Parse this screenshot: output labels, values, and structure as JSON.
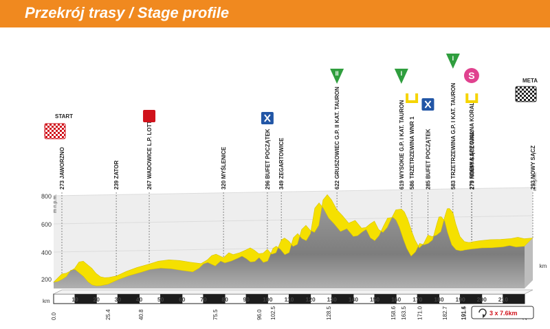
{
  "header": {
    "title": "Przekrój trasy / Stage profile"
  },
  "chart_data": {
    "type": "area",
    "title": "Przekrój trasy / Stage profile",
    "ylabel": "m n.p.m.",
    "x_unit": "km",
    "y_unit": "km",
    "xlim": [
      0,
      220
    ],
    "ylim": [
      200,
      800
    ],
    "y_ticks": [
      "200",
      "400",
      "600",
      "800"
    ],
    "x_ticks": [
      "10",
      "20",
      "30",
      "40",
      "50",
      "60",
      "70",
      "80",
      "90",
      "100",
      "110",
      "120",
      "130",
      "140",
      "150",
      "160",
      "170",
      "180",
      "190",
      "200",
      "210"
    ],
    "series": [
      {
        "x": [
          0,
          2,
          4,
          6,
          8,
          10,
          12,
          14,
          16,
          18,
          20,
          22,
          25.4,
          30,
          35,
          40.8,
          45,
          50,
          55,
          60,
          65,
          68,
          70,
          72,
          75.5,
          78,
          80,
          83,
          86,
          88,
          90,
          92,
          94,
          96,
          98,
          100,
          102.5,
          104,
          106,
          108,
          110,
          112,
          114,
          116,
          118,
          120,
          122,
          124,
          126,
          128.5,
          131,
          134,
          137,
          140,
          142,
          144,
          146,
          148,
          150,
          152,
          154,
          156,
          158.6,
          160,
          161.5,
          163.5,
          165,
          167,
          169,
          171,
          173,
          175,
          177,
          179,
          180,
          181,
          182.7,
          184,
          186,
          188,
          190,
          191.4,
          191.5,
          195,
          200,
          205,
          210,
          213,
          216,
          220
        ],
        "y": [
          245,
          250,
          265,
          285,
          330,
          335,
          310,
          285,
          248,
          225,
          218,
          220,
          230,
          262,
          290,
          315,
          335,
          345,
          340,
          328,
          318,
          345,
          375,
          385,
          360,
          395,
          382,
          395,
          415,
          430,
          412,
          388,
          392,
          420,
          385,
          395,
          485,
          500,
          478,
          440,
          455,
          560,
          590,
          555,
          540,
          590,
          770,
          808,
          770,
          700,
          660,
          605,
          625,
          570,
          575,
          600,
          620,
          560,
          540,
          575,
          640,
          700,
          705,
          685,
          635,
          545,
          485,
          430,
          460,
          520,
          510,
          520,
          545,
          658,
          708,
          710,
          680,
          600,
          510,
          475,
          468,
          470,
          472,
          480,
          488,
          490,
          496,
          505,
          495,
          500
        ]
      }
    ],
    "labels": [
      {
        "km": 0.0,
        "km_text": "0.0",
        "text": "273 JAWORZNO"
      },
      {
        "km": 25.4,
        "km_text": "25.4",
        "text": "239 ZATOR"
      },
      {
        "km": 40.8,
        "km_text": "40.8",
        "text": "267 WADOWICE L.P. LOTTO"
      },
      {
        "km": 75.5,
        "km_text": "75.5",
        "text": "320 MYŚLENICE"
      },
      {
        "km": 96.0,
        "km_text": "96.0",
        "text": "296 BUFET POCZĄTEK"
      },
      {
        "km": 102.5,
        "km_text": "102.5",
        "text": "349 ZEGARTOWICE"
      },
      {
        "km": 128.5,
        "km_text": "128.5",
        "text": "622 GRUSZOWIEC G.P. II KAT. TAURON"
      },
      {
        "km": 158.6,
        "km_text": "158.6",
        "text": "619 WYSOKIE G.P. I KAT. TAURON"
      },
      {
        "km": 163.5,
        "km_text": "163.5",
        "text": "586 TRZETRZEWINA WNR 1"
      },
      {
        "km": 171.0,
        "km_text": "171.0",
        "text": "285 BUFET POCZĄTEK"
      },
      {
        "km": 182.7,
        "km_text": "182.7",
        "text": "583 TRZETRZEWINA G.P. I KAT. TAURON"
      },
      {
        "km": 191.4,
        "km_text": "191.4",
        "text": "279 PREMIA SPECJALNA KORAL"
      },
      {
        "km": 191.5,
        "km_text": "191.5",
        "text": "279 NOWY SĄCZ WNR"
      },
      {
        "km": 220.0,
        "km_text": "220.0",
        "text": "293 NOWY SĄCZ"
      }
    ],
    "markers": {
      "start": "START",
      "finish": "META",
      "mountain_1": "I",
      "mountain_2": "II",
      "sprint_icon": "sprint-intermediate-icon",
      "feed_icon": "feed-zone-icon",
      "special_icon": "special-prize-icon",
      "lotto_icon": "lotto-premium-icon",
      "special_letter": "S"
    },
    "circuit": "3 x 7.6km",
    "colors": {
      "banner": "#f0891f",
      "profile_top": "#f5e000",
      "terrain": "#8a8a8a",
      "mountain": "#2f9e3e",
      "special": "#e0428f",
      "feed": "#2256a6",
      "lotto": "#d0121b"
    }
  }
}
